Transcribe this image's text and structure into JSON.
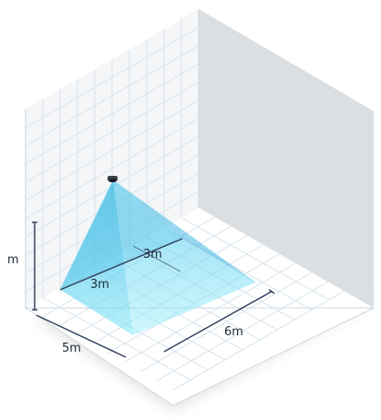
{
  "diagram": {
    "labels": {
      "height": "m",
      "width": "5m",
      "depth": "6m",
      "coverage_a": "3m",
      "coverage_b": "3m"
    },
    "colors": {
      "floor": "#ffffff",
      "wall_left": "#f5f7f9",
      "wall_right": "#dcdfe2",
      "grid": "#d8e4ec",
      "coverage": "#22b7e4",
      "dimension_line": "#2c3a57",
      "text": "#1f2a3c"
    },
    "device": "camera-icon"
  }
}
